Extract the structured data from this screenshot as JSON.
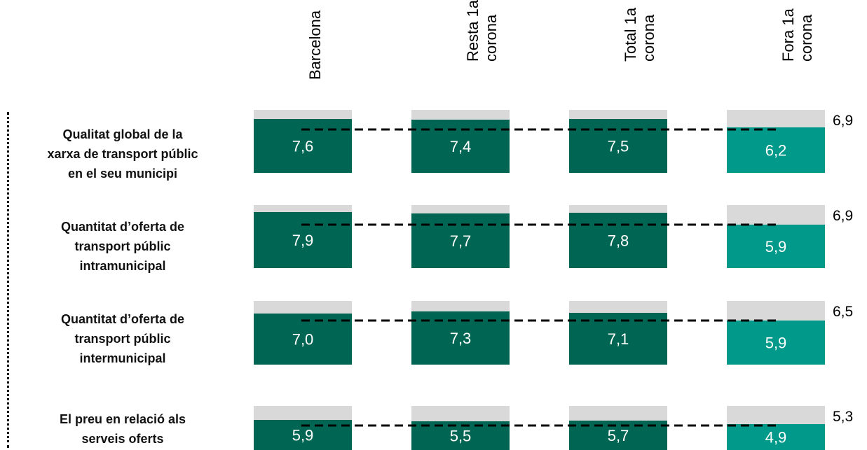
{
  "chart_data": {
    "type": "bar",
    "categories": [
      "Qualitat global de la xarxa de transport públic en el seu municipi",
      "Quantitat d’oferta de transport públic intramunicipal",
      "Quantitat d’oferta de transport públic intermunicipal",
      "El preu en relació als serveis oferts"
    ],
    "row_labels": [
      [
        "Qualitat global de la",
        "xarxa de transport públic",
        "en el seu municipi"
      ],
      [
        "Quantitat d’oferta de",
        "transport públic",
        "intramunicipal"
      ],
      [
        "Quantitat d’oferta de",
        "transport públic",
        "intermunicipal"
      ],
      [
        "El preu en relació als",
        "serveis oferts"
      ]
    ],
    "series": [
      {
        "name": "Barcelona",
        "header": [
          "Barcelona"
        ],
        "values": [
          7.6,
          7.9,
          7.0,
          5.9
        ],
        "labels": [
          "7,6",
          "7,9",
          "7,0",
          "5,9"
        ]
      },
      {
        "name": "Resta 1a corona",
        "header": [
          "Resta 1a",
          "corona"
        ],
        "values": [
          7.4,
          7.7,
          7.3,
          5.5
        ],
        "labels": [
          "7,4",
          "7,7",
          "7,3",
          "5,5"
        ]
      },
      {
        "name": "Total 1a corona",
        "header": [
          "Total 1a",
          "corona"
        ],
        "values": [
          7.5,
          7.8,
          7.1,
          5.7
        ],
        "labels": [
          "7,5",
          "7,8",
          "7,1",
          "5,7"
        ]
      },
      {
        "name": "Fora 1a corona",
        "header": [
          "Fora 1a",
          "corona"
        ],
        "values": [
          6.2,
          5.9,
          5.9,
          4.9
        ],
        "labels": [
          "6,2",
          "5,9",
          "5,9",
          "4,9"
        ]
      }
    ],
    "reference": {
      "values": [
        6.9,
        6.9,
        6.5,
        5.3
      ],
      "labels": [
        "6,9",
        "6,9",
        "6,5",
        "5,3"
      ]
    },
    "ylim": [
      0,
      10
    ],
    "colors": {
      "dark": "#006653",
      "light": "#00998a",
      "background": "#d9d9d9",
      "text": "#ffffff"
    }
  }
}
